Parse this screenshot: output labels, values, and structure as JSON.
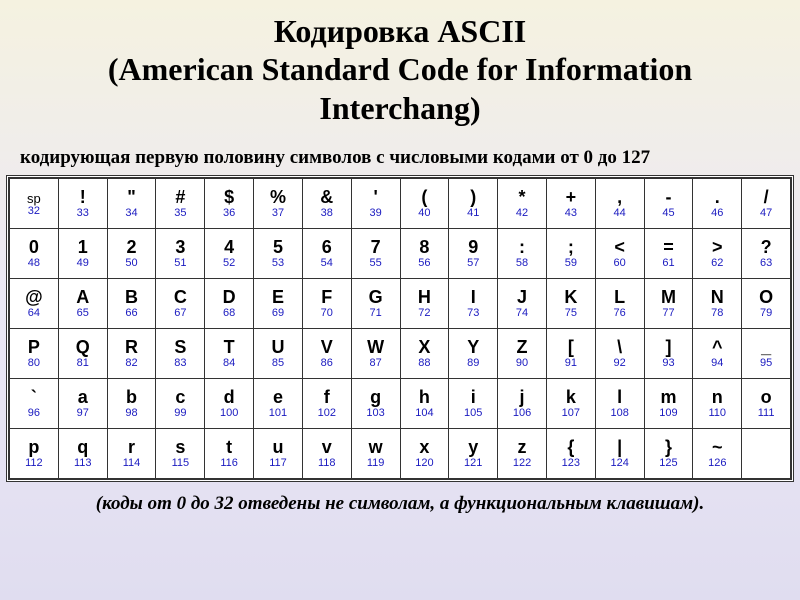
{
  "title_line1": "Кодировка ASCII",
  "title_line2_open": "(",
  "title_line2": "American Standard Code for Information Interchang",
  "title_line2_close": ")",
  "subtitle": "кодирующая первую половину символов с числовыми кодами от 0 до 127",
  "footnote": "(коды от 0 до 32 отведены не символам, а функциональным клавишам).",
  "table": {
    "columns": 16,
    "rows": [
      [
        {
          "glyph": "sp",
          "code": "32",
          "sp": true
        },
        {
          "glyph": "!",
          "code": "33"
        },
        {
          "glyph": "\"",
          "code": "34"
        },
        {
          "glyph": "#",
          "code": "35"
        },
        {
          "glyph": "$",
          "code": "36"
        },
        {
          "glyph": "%",
          "code": "37"
        },
        {
          "glyph": "&",
          "code": "38"
        },
        {
          "glyph": "'",
          "code": "39"
        },
        {
          "glyph": "(",
          "code": "40"
        },
        {
          "glyph": ")",
          "code": "41"
        },
        {
          "glyph": "*",
          "code": "42"
        },
        {
          "glyph": "+",
          "code": "43"
        },
        {
          "glyph": ",",
          "code": "44"
        },
        {
          "glyph": "-",
          "code": "45"
        },
        {
          "glyph": ".",
          "code": "46"
        },
        {
          "glyph": "/",
          "code": "47"
        }
      ],
      [
        {
          "glyph": "0",
          "code": "48"
        },
        {
          "glyph": "1",
          "code": "49"
        },
        {
          "glyph": "2",
          "code": "50"
        },
        {
          "glyph": "3",
          "code": "51"
        },
        {
          "glyph": "4",
          "code": "52"
        },
        {
          "glyph": "5",
          "code": "53"
        },
        {
          "glyph": "6",
          "code": "54"
        },
        {
          "glyph": "7",
          "code": "55"
        },
        {
          "glyph": "8",
          "code": "56"
        },
        {
          "glyph": "9",
          "code": "57"
        },
        {
          "glyph": ":",
          "code": "58"
        },
        {
          "glyph": ";",
          "code": "59"
        },
        {
          "glyph": "<",
          "code": "60"
        },
        {
          "glyph": "=",
          "code": "61"
        },
        {
          "glyph": ">",
          "code": "62"
        },
        {
          "glyph": "?",
          "code": "63"
        }
      ],
      [
        {
          "glyph": "@",
          "code": "64"
        },
        {
          "glyph": "A",
          "code": "65"
        },
        {
          "glyph": "B",
          "code": "66"
        },
        {
          "glyph": "C",
          "code": "67"
        },
        {
          "glyph": "D",
          "code": "68"
        },
        {
          "glyph": "E",
          "code": "69"
        },
        {
          "glyph": "F",
          "code": "70"
        },
        {
          "glyph": "G",
          "code": "71"
        },
        {
          "glyph": "H",
          "code": "72"
        },
        {
          "glyph": "I",
          "code": "73"
        },
        {
          "glyph": "J",
          "code": "74"
        },
        {
          "glyph": "K",
          "code": "75"
        },
        {
          "glyph": "L",
          "code": "76"
        },
        {
          "glyph": "M",
          "code": "77"
        },
        {
          "glyph": "N",
          "code": "78"
        },
        {
          "glyph": "O",
          "code": "79"
        }
      ],
      [
        {
          "glyph": "P",
          "code": "80"
        },
        {
          "glyph": "Q",
          "code": "81"
        },
        {
          "glyph": "R",
          "code": "82"
        },
        {
          "glyph": "S",
          "code": "83"
        },
        {
          "glyph": "T",
          "code": "84"
        },
        {
          "glyph": "U",
          "code": "85"
        },
        {
          "glyph": "V",
          "code": "86"
        },
        {
          "glyph": "W",
          "code": "87"
        },
        {
          "glyph": "X",
          "code": "88"
        },
        {
          "glyph": "Y",
          "code": "89"
        },
        {
          "glyph": "Z",
          "code": "90"
        },
        {
          "glyph": "[",
          "code": "91"
        },
        {
          "glyph": "\\",
          "code": "92"
        },
        {
          "glyph": "]",
          "code": "93"
        },
        {
          "glyph": "^",
          "code": "94"
        },
        {
          "glyph": "_",
          "code": "95"
        }
      ],
      [
        {
          "glyph": "`",
          "code": "96"
        },
        {
          "glyph": "a",
          "code": "97"
        },
        {
          "glyph": "b",
          "code": "98"
        },
        {
          "glyph": "c",
          "code": "99"
        },
        {
          "glyph": "d",
          "code": "100"
        },
        {
          "glyph": "e",
          "code": "101"
        },
        {
          "glyph": "f",
          "code": "102"
        },
        {
          "glyph": "g",
          "code": "103"
        },
        {
          "glyph": "h",
          "code": "104"
        },
        {
          "glyph": "i",
          "code": "105"
        },
        {
          "glyph": "j",
          "code": "106"
        },
        {
          "glyph": "k",
          "code": "107"
        },
        {
          "glyph": "l",
          "code": "108"
        },
        {
          "glyph": "m",
          "code": "109"
        },
        {
          "glyph": "n",
          "code": "110"
        },
        {
          "glyph": "o",
          "code": "111"
        }
      ],
      [
        {
          "glyph": "p",
          "code": "112"
        },
        {
          "glyph": "q",
          "code": "113"
        },
        {
          "glyph": "r",
          "code": "114"
        },
        {
          "glyph": "s",
          "code": "115"
        },
        {
          "glyph": "t",
          "code": "116"
        },
        {
          "glyph": "u",
          "code": "117"
        },
        {
          "glyph": "v",
          "code": "118"
        },
        {
          "glyph": "w",
          "code": "119"
        },
        {
          "glyph": "x",
          "code": "120"
        },
        {
          "glyph": "y",
          "code": "121"
        },
        {
          "glyph": "z",
          "code": "122"
        },
        {
          "glyph": "{",
          "code": "123"
        },
        {
          "glyph": "|",
          "code": "124"
        },
        {
          "glyph": "}",
          "code": "125"
        },
        {
          "glyph": "~",
          "code": "126"
        },
        {
          "glyph": "",
          "code": ""
        }
      ]
    ],
    "glyph_color": "#000000",
    "code_color": "#1a1ac0",
    "border_color": "#333333",
    "cell_bg": "#ffffff"
  },
  "colors": {
    "bg_top": "#f5f2e0",
    "bg_bottom": "#e0ddf0",
    "text": "#000000"
  }
}
